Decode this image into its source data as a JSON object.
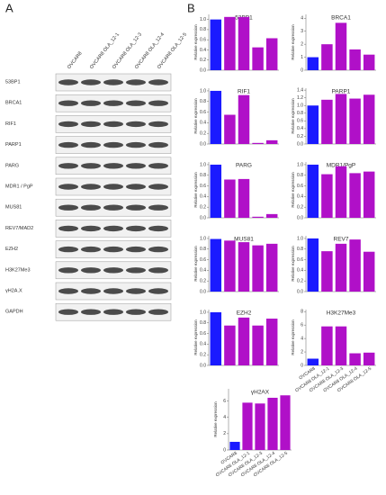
{
  "panel_labels": [
    "A",
    "B"
  ],
  "blot": {
    "lanes": [
      "OVCAR8",
      "OVCAR8 OLA_12-1",
      "OVCAR8 OLA_12-3",
      "OVCAR8 OLA_12-4",
      "OVCAR8 OLA_12-5"
    ],
    "proteins": [
      "53BP1",
      "BRCA1",
      "RIF1",
      "PARP1",
      "PARG",
      "MDR1 / PgP",
      "MUS81",
      "REV7/MAD2",
      "EZH2",
      "H3K27Me3",
      "γH2A.X",
      "GAPDH"
    ]
  },
  "chart_data": [
    {
      "type": "bar",
      "title": "53BP1",
      "y_label": "Relative expression",
      "values": [
        1.0,
        1.05,
        1.05,
        0.45,
        0.63
      ],
      "colors": [
        "#1a1aff",
        "#b010c8",
        "#b010c8",
        "#b010c8",
        "#b010c8"
      ],
      "ylim": [
        0,
        1.1
      ],
      "yticks": [
        {
          "value": 0,
          "label": "0.0"
        },
        0.2,
        0.4,
        0.6,
        0.8,
        {
          "value": 1,
          "label": "1.0"
        }
      ]
    },
    {
      "type": "bar",
      "title": "BRCA1",
      "y_label": "Relative expression",
      "values": [
        1,
        2,
        3.65,
        1.6,
        1.2
      ],
      "colors": [
        "#1a1aff",
        "#b010c8",
        "#b010c8",
        "#b010c8",
        "#b010c8"
      ],
      "ylim": [
        0,
        4.3
      ],
      "yticks": [
        0,
        1,
        2,
        3,
        4
      ]
    },
    {
      "type": "bar",
      "title": "RIF1",
      "y_label": "Relative expression",
      "values": [
        1.0,
        0.55,
        0.92,
        0.02,
        0.07
      ],
      "colors": [
        "#1a1aff",
        "#b010c8",
        "#b010c8",
        "#b010c8",
        "#b010c8"
      ],
      "ylim": [
        0,
        1.05
      ],
      "yticks": [
        {
          "value": 0,
          "label": "0.0"
        },
        0.2,
        0.4,
        0.6,
        0.8,
        {
          "value": 1,
          "label": "1.0"
        }
      ]
    },
    {
      "type": "bar",
      "title": "PARP1",
      "y_label": "Relative expression",
      "values": [
        1.0,
        1.15,
        1.3,
        1.18,
        1.28
      ],
      "colors": [
        "#1a1aff",
        "#b010c8",
        "#b010c8",
        "#b010c8",
        "#b010c8"
      ],
      "ylim": [
        0,
        1.45
      ],
      "yticks": [
        {
          "value": 0,
          "label": "0.0"
        },
        0.2,
        0.4,
        0.6,
        0.8,
        {
          "value": 1,
          "label": "1.0"
        },
        1.2,
        1.4
      ]
    },
    {
      "type": "bar",
      "title": "PARG",
      "y_label": "Relative expression",
      "values": [
        1.0,
        0.72,
        0.73,
        0.02,
        0.07
      ],
      "colors": [
        "#1a1aff",
        "#b010c8",
        "#b010c8",
        "#b010c8",
        "#b010c8"
      ],
      "ylim": [
        0,
        1.05
      ],
      "yticks": [
        {
          "value": 0,
          "label": "0.0"
        },
        0.2,
        0.4,
        0.6,
        0.8,
        {
          "value": 1,
          "label": "1.0"
        }
      ]
    },
    {
      "type": "bar",
      "title": "MDR1/PgP",
      "y_label": "Relative expression",
      "values": [
        1.0,
        0.82,
        0.97,
        0.84,
        0.87
      ],
      "colors": [
        "#1a1aff",
        "#b010c8",
        "#b010c8",
        "#b010c8",
        "#b010c8"
      ],
      "ylim": [
        0,
        1.05
      ],
      "yticks": [
        {
          "value": 0,
          "label": "0.0"
        },
        0.2,
        0.4,
        0.6,
        0.8,
        {
          "value": 1,
          "label": "1.0"
        }
      ]
    },
    {
      "type": "bar",
      "title": "MUS81",
      "y_label": "Relative expression",
      "values": [
        0.99,
        0.96,
        0.93,
        0.87,
        0.9
      ],
      "colors": [
        "#1a1aff",
        "#b010c8",
        "#b010c8",
        "#b010c8",
        "#b010c8"
      ],
      "ylim": [
        0,
        1.05
      ],
      "yticks": [
        {
          "value": 0,
          "label": "0.0"
        },
        0.2,
        0.4,
        0.6,
        0.8,
        {
          "value": 1,
          "label": "1.0"
        }
      ]
    },
    {
      "type": "bar",
      "title": "REV7",
      "y_label": "Relative expression",
      "values": [
        1.0,
        0.76,
        0.9,
        0.98,
        0.75
      ],
      "colors": [
        "#1a1aff",
        "#b010c8",
        "#b010c8",
        "#b010c8",
        "#b010c8"
      ],
      "ylim": [
        0,
        1.05
      ],
      "yticks": [
        {
          "value": 0,
          "label": "0.0"
        },
        0.2,
        0.4,
        0.6,
        0.8,
        {
          "value": 1,
          "label": "1.0"
        }
      ]
    },
    {
      "type": "bar",
      "title": "EZH2",
      "y_label": "Relative expression",
      "values": [
        1.0,
        0.75,
        0.9,
        0.75,
        0.88
      ],
      "colors": [
        "#1a1aff",
        "#b010c8",
        "#b010c8",
        "#b010c8",
        "#b010c8"
      ],
      "ylim": [
        0,
        1.05
      ],
      "yticks": [
        {
          "value": 0,
          "label": "0.0"
        },
        0.2,
        0.4,
        0.6,
        0.8,
        {
          "value": 1,
          "label": "1.0"
        }
      ]
    },
    {
      "type": "bar",
      "title": "H3K27Me3",
      "y_label": "Relative expression",
      "categories": [
        "OVCAR8",
        "OVCAR8 OLA_12-1",
        "OVCAR8 OLA_12-3",
        "OVCAR8 OLA_12-4",
        "OVCAR8 OLA_12-5"
      ],
      "values": [
        1,
        5.8,
        5.8,
        1.8,
        1.9
      ],
      "colors": [
        "#1a1aff",
        "#b010c8",
        "#b010c8",
        "#b010c8",
        "#b010c8"
      ],
      "ylim": [
        0,
        8.3
      ],
      "yticks": [
        0,
        2,
        4,
        6,
        8
      ]
    },
    {
      "type": "bar",
      "title": "γH2AX",
      "y_label": "Relative expression",
      "categories": [
        "OVCAR8",
        "OVCAR8 OLA_12-1",
        "OVCAR8 OLA_12-3",
        "OVCAR8 OLA_12-4",
        "OVCAR8 OLA_12-5"
      ],
      "values": [
        1,
        5.8,
        5.7,
        6.4,
        6.7
      ],
      "colors": [
        "#1a1aff",
        "#b010c8",
        "#b010c8",
        "#b010c8",
        "#b010c8"
      ],
      "ylim": [
        0,
        7.5
      ],
      "yticks": [
        0,
        2,
        4,
        6
      ]
    }
  ]
}
